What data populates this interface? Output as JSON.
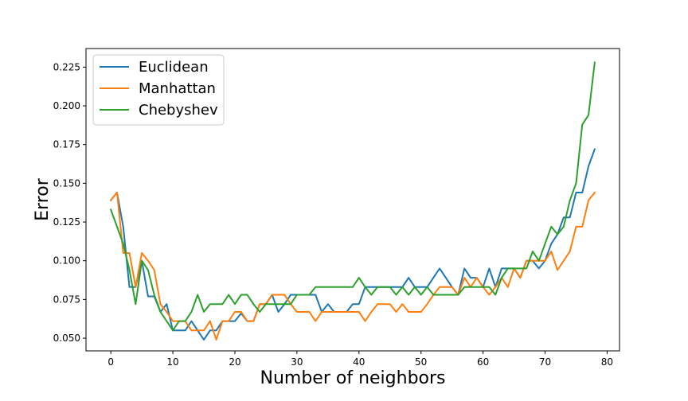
{
  "chart_data": {
    "type": "line",
    "title": "",
    "xlabel": "Number of neighbors",
    "ylabel": "Error",
    "xlim": [
      -4,
      82
    ],
    "ylim": [
      0.0418,
      0.237
    ],
    "xticks": [
      0,
      10,
      20,
      30,
      40,
      50,
      60,
      70,
      80
    ],
    "yticks": [
      0.05,
      0.075,
      0.1,
      0.125,
      0.15,
      0.175,
      0.2,
      0.225
    ],
    "ytick_labels": [
      "0.050",
      "0.075",
      "0.100",
      "0.125",
      "0.150",
      "0.175",
      "0.200",
      "0.225"
    ],
    "grid": false,
    "legend_position": "top-left",
    "series": [
      {
        "name": "Euclidean",
        "color": "#1f77b4",
        "x": [
          0,
          1,
          2,
          3,
          4,
          5,
          6,
          7,
          8,
          9,
          10,
          11,
          12,
          13,
          14,
          15,
          16,
          17,
          18,
          19,
          20,
          21,
          22,
          23,
          24,
          25,
          26,
          27,
          28,
          29,
          30,
          31,
          32,
          33,
          34,
          35,
          36,
          37,
          38,
          39,
          40,
          41,
          42,
          43,
          44,
          45,
          46,
          47,
          48,
          49,
          50,
          51,
          52,
          53,
          54,
          55,
          56,
          57,
          58,
          59,
          60,
          61,
          62,
          63,
          64,
          65,
          66,
          67,
          68,
          69,
          70,
          71,
          72,
          73,
          74,
          75,
          76,
          77,
          78
        ],
        "y": [
          0.139,
          0.144,
          0.122,
          0.083,
          0.083,
          0.1,
          0.077,
          0.077,
          0.067,
          0.072,
          0.055,
          0.055,
          0.055,
          0.061,
          0.055,
          0.049,
          0.055,
          0.055,
          0.061,
          0.061,
          0.061,
          0.066,
          0.061,
          0.061,
          0.072,
          0.072,
          0.078,
          0.067,
          0.072,
          0.078,
          0.078,
          0.078,
          0.078,
          0.078,
          0.067,
          0.072,
          0.067,
          0.067,
          0.067,
          0.072,
          0.072,
          0.083,
          0.083,
          0.083,
          0.083,
          0.083,
          0.083,
          0.083,
          0.089,
          0.083,
          0.083,
          0.083,
          0.089,
          0.095,
          0.089,
          0.083,
          0.078,
          0.095,
          0.089,
          0.089,
          0.083,
          0.095,
          0.083,
          0.095,
          0.095,
          0.095,
          0.089,
          0.1,
          0.1,
          0.095,
          0.1,
          0.111,
          0.117,
          0.128,
          0.128,
          0.144,
          0.144,
          0.161,
          0.172
        ]
      },
      {
        "name": "Manhattan",
        "color": "#ff7f0e",
        "x": [
          0,
          1,
          2,
          3,
          4,
          5,
          6,
          7,
          8,
          9,
          10,
          11,
          12,
          13,
          14,
          15,
          16,
          17,
          18,
          19,
          20,
          21,
          22,
          23,
          24,
          25,
          26,
          27,
          28,
          29,
          30,
          31,
          32,
          33,
          34,
          35,
          36,
          37,
          38,
          39,
          40,
          41,
          42,
          43,
          44,
          45,
          46,
          47,
          48,
          49,
          50,
          51,
          52,
          53,
          54,
          55,
          56,
          57,
          58,
          59,
          60,
          61,
          62,
          63,
          64,
          65,
          66,
          67,
          68,
          69,
          70,
          71,
          72,
          73,
          74,
          75,
          76,
          77,
          78
        ],
        "y": [
          0.139,
          0.144,
          0.105,
          0.105,
          0.083,
          0.105,
          0.1,
          0.094,
          0.072,
          0.067,
          0.061,
          0.061,
          0.061,
          0.055,
          0.055,
          0.055,
          0.061,
          0.049,
          0.061,
          0.061,
          0.067,
          0.067,
          0.061,
          0.061,
          0.072,
          0.072,
          0.078,
          0.078,
          0.078,
          0.072,
          0.067,
          0.067,
          0.067,
          0.061,
          0.067,
          0.067,
          0.067,
          0.067,
          0.067,
          0.067,
          0.067,
          0.061,
          0.067,
          0.072,
          0.072,
          0.072,
          0.067,
          0.072,
          0.067,
          0.067,
          0.067,
          0.072,
          0.078,
          0.083,
          0.083,
          0.083,
          0.078,
          0.089,
          0.083,
          0.089,
          0.083,
          0.078,
          0.083,
          0.089,
          0.083,
          0.095,
          0.089,
          0.1,
          0.1,
          0.1,
          0.1,
          0.106,
          0.094,
          0.1,
          0.106,
          0.122,
          0.122,
          0.139,
          0.144
        ]
      },
      {
        "name": "Chebyshev",
        "color": "#2ca02c",
        "x": [
          0,
          1,
          2,
          3,
          4,
          5,
          6,
          7,
          8,
          9,
          10,
          11,
          12,
          13,
          14,
          15,
          16,
          17,
          18,
          19,
          20,
          21,
          22,
          23,
          24,
          25,
          26,
          27,
          28,
          29,
          30,
          31,
          32,
          33,
          34,
          35,
          36,
          37,
          38,
          39,
          40,
          41,
          42,
          43,
          44,
          45,
          46,
          47,
          48,
          49,
          50,
          51,
          52,
          53,
          54,
          55,
          56,
          57,
          58,
          59,
          60,
          61,
          62,
          63,
          64,
          65,
          66,
          67,
          68,
          69,
          70,
          71,
          72,
          73,
          74,
          75,
          76,
          77,
          78
        ],
        "y": [
          0.133,
          0.122,
          0.111,
          0.094,
          0.072,
          0.1,
          0.094,
          0.078,
          0.067,
          0.061,
          0.055,
          0.061,
          0.061,
          0.067,
          0.078,
          0.067,
          0.072,
          0.072,
          0.072,
          0.078,
          0.072,
          0.078,
          0.078,
          0.072,
          0.067,
          0.072,
          0.072,
          0.072,
          0.072,
          0.072,
          0.078,
          0.078,
          0.078,
          0.083,
          0.083,
          0.083,
          0.083,
          0.083,
          0.083,
          0.083,
          0.089,
          0.083,
          0.078,
          0.083,
          0.083,
          0.083,
          0.078,
          0.083,
          0.078,
          0.083,
          0.078,
          0.083,
          0.078,
          0.078,
          0.078,
          0.078,
          0.078,
          0.083,
          0.083,
          0.083,
          0.083,
          0.083,
          0.078,
          0.089,
          0.095,
          0.095,
          0.095,
          0.095,
          0.106,
          0.1,
          0.111,
          0.122,
          0.117,
          0.122,
          0.139,
          0.15,
          0.188,
          0.194,
          0.228
        ]
      }
    ]
  }
}
